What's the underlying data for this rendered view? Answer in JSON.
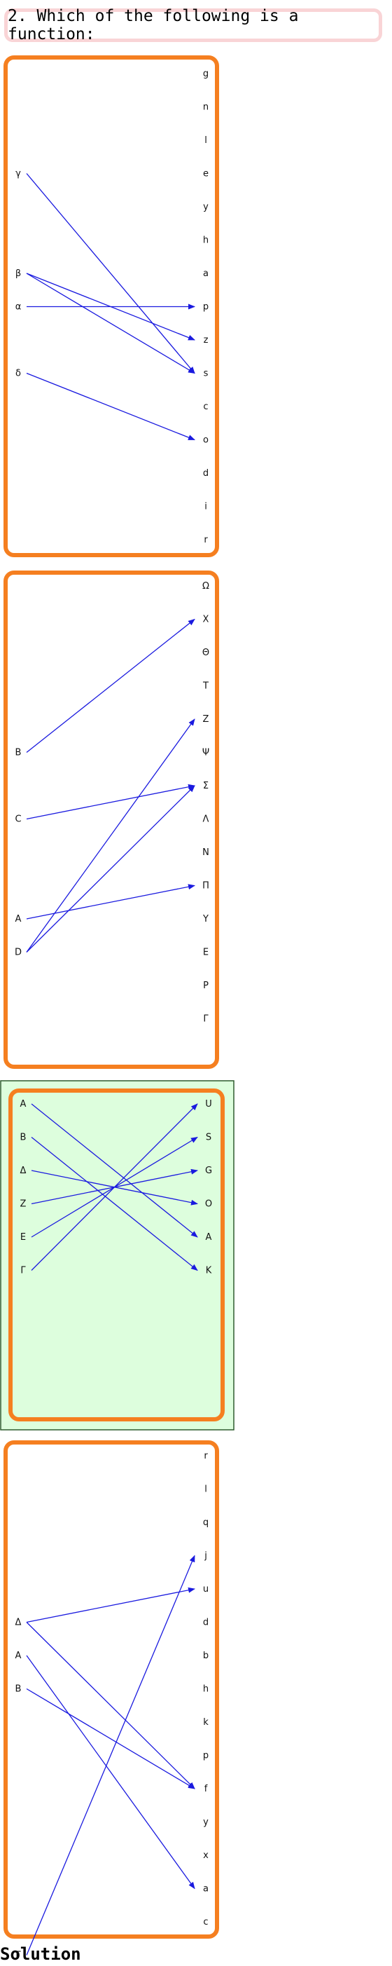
{
  "question": "2. Which of the following is a function:",
  "colors": {
    "arrow": "#1a1adf",
    "panel_border": "#f57f20",
    "highlight_bg": "#ddfedd",
    "highlight_border": "#2f5b2f",
    "question_border": "#f9d4d6"
  },
  "options": [
    {
      "left": [
        "γ",
        "β",
        "α",
        "δ"
      ],
      "right": [
        "g",
        "n",
        "l",
        "e",
        "y",
        "h",
        "a",
        "p",
        "z",
        "s",
        "c",
        "o",
        "d",
        "i",
        "r"
      ],
      "arrows": [
        [
          "γ",
          "s"
        ],
        [
          "β",
          "z"
        ],
        [
          "β",
          "s"
        ],
        [
          "α",
          "p"
        ],
        [
          "δ",
          "o"
        ]
      ],
      "highlighted": false
    },
    {
      "left": [
        "B",
        "C",
        "A",
        "D"
      ],
      "right": [
        "Ω",
        "X",
        "Θ",
        "T",
        "Z",
        "Ψ",
        "Σ",
        "Λ",
        "N",
        "Π",
        "Y",
        "E",
        "P",
        "Γ"
      ],
      "arrows": [
        [
          "B",
          "X"
        ],
        [
          "C",
          "Σ"
        ],
        [
          "A",
          "Π"
        ],
        [
          "D",
          "Z"
        ],
        [
          "D",
          "Σ"
        ]
      ],
      "highlighted": false
    },
    {
      "left": [
        "A",
        "B",
        "Δ",
        "Z",
        "E",
        "Γ"
      ],
      "right": [
        "U",
        "S",
        "G",
        "O",
        "A",
        "K"
      ],
      "arrows": [
        [
          "A",
          "A"
        ],
        [
          "B",
          "K"
        ],
        [
          "Δ",
          "O"
        ],
        [
          "Z",
          "G"
        ],
        [
          "E",
          "S"
        ],
        [
          "Γ",
          "U"
        ]
      ],
      "highlighted": true
    },
    {
      "left": [
        "Δ",
        "A",
        "B",
        "Γ"
      ],
      "right": [
        "r",
        "l",
        "q",
        "j",
        "u",
        "d",
        "b",
        "h",
        "k",
        "p",
        "f",
        "y",
        "x",
        "a",
        "c"
      ],
      "arrows": [
        [
          "Δ",
          "u"
        ],
        [
          "Δ",
          "f"
        ],
        [
          "A",
          "a"
        ],
        [
          "B",
          "f"
        ],
        [
          "Γ",
          "j"
        ]
      ],
      "highlighted": false
    }
  ],
  "solution_label": "Solution"
}
